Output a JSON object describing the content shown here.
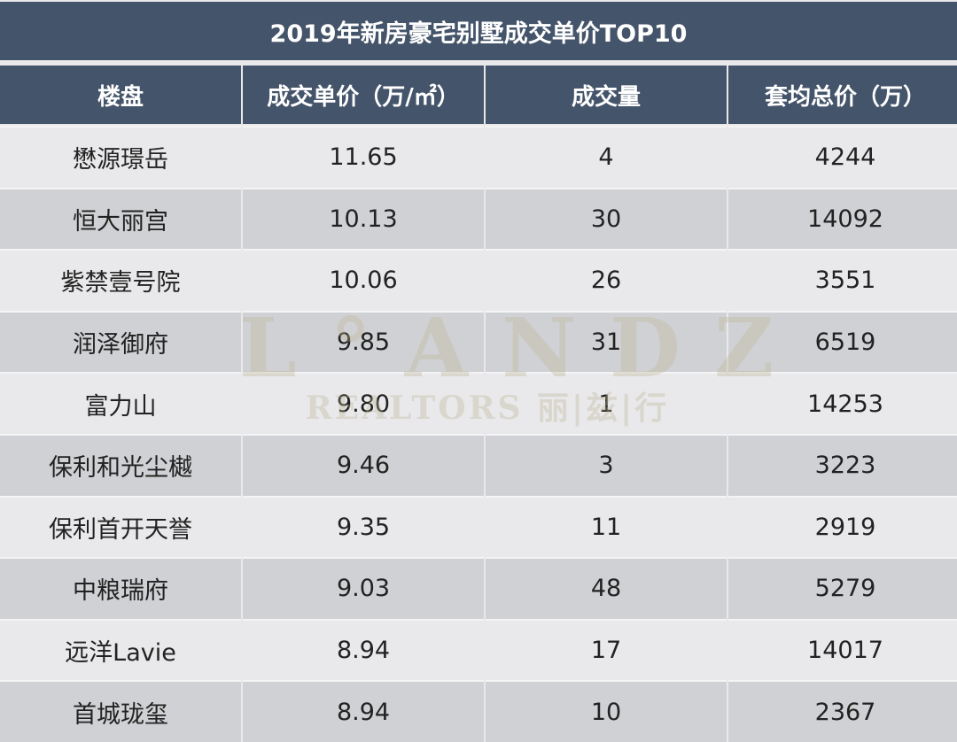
{
  "title": "2019年新房豪宅别墅成交单价TOP10",
  "table": {
    "headers": [
      "楼盘",
      "成交单价（万/㎡）",
      "成交量",
      "套均总价（万）"
    ],
    "rows": [
      {
        "name": "懋源璟岳",
        "unit_price": "11.65",
        "volume": "4",
        "avg_total": "4244"
      },
      {
        "name": "恒大丽宫",
        "unit_price": "10.13",
        "volume": "30",
        "avg_total": "14092"
      },
      {
        "name": "紫禁壹号院",
        "unit_price": "10.06",
        "volume": "26",
        "avg_total": "3551"
      },
      {
        "name": "润泽御府",
        "unit_price": "9.85",
        "volume": "31",
        "avg_total": "6519"
      },
      {
        "name": "富力山",
        "unit_price": "9.80",
        "volume": "1",
        "avg_total": "14253"
      },
      {
        "name": "保利和光尘樾",
        "unit_price": "9.46",
        "volume": "3",
        "avg_total": "3223"
      },
      {
        "name": "保利首开天誉",
        "unit_price": "9.35",
        "volume": "11",
        "avg_total": "2919"
      },
      {
        "name": "中粮瑞府",
        "unit_price": "9.03",
        "volume": "48",
        "avg_total": "5279"
      },
      {
        "name": "远洋Lavie",
        "unit_price": "8.94",
        "volume": "17",
        "avg_total": "14017"
      },
      {
        "name": "首城珑玺",
        "unit_price": "8.94",
        "volume": "10",
        "avg_total": "2367"
      }
    ]
  },
  "watermark": {
    "main": "L°ANDZ",
    "sub": "REALTORS 丽|兹|行"
  },
  "colors": {
    "header_bg": "#44546a",
    "header_text": "#ffffff",
    "row_light": "#e9e9eb",
    "row_dark": "#d0d1d4",
    "body_text": "#222222"
  }
}
